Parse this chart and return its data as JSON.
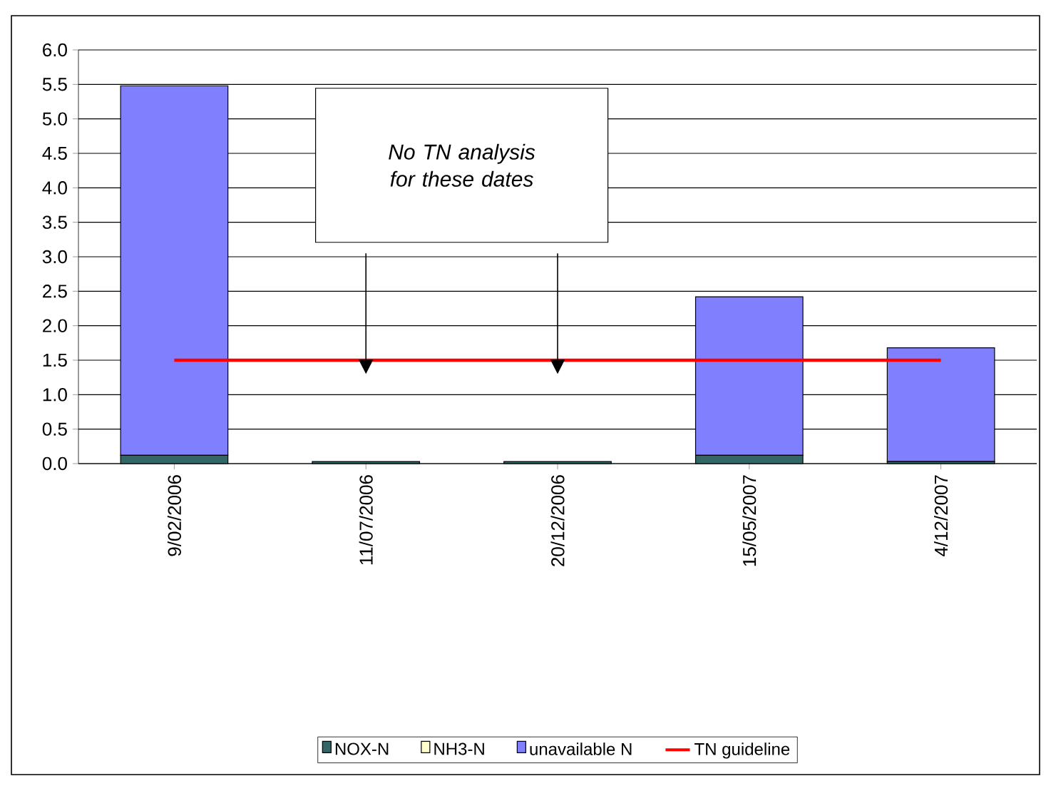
{
  "chart_data": {
    "type": "bar",
    "stacked": true,
    "categories": [
      "9/02/2006",
      "11/07/2006",
      "20/12/2006",
      "15/05/2007",
      "4/12/2007"
    ],
    "series": [
      {
        "name": "NOX-N",
        "color": "#336666",
        "values": [
          0.12,
          0.03,
          0.03,
          0.12,
          0.03
        ]
      },
      {
        "name": "NH3-N",
        "color": "#ffffcc",
        "values": [
          0,
          0,
          0,
          0,
          0
        ]
      },
      {
        "name": "unavailable N",
        "color": "#8080ff",
        "values": [
          5.36,
          null,
          null,
          2.3,
          1.65
        ]
      },
      {
        "name": "TN guideline",
        "type": "line",
        "color": "#ff0000",
        "values": [
          1.5,
          1.5,
          1.5,
          1.5,
          1.5
        ]
      }
    ],
    "ylim": [
      0,
      6
    ],
    "yticks": [
      {
        "value": 0,
        "label": "0.0"
      },
      {
        "value": 0.5,
        "label": "0.5"
      },
      {
        "value": 1,
        "label": "1.0"
      },
      {
        "value": 1.5,
        "label": "1.5"
      },
      {
        "value": 2,
        "label": "2.0"
      },
      {
        "value": 2.5,
        "label": "2.5"
      },
      {
        "value": 3,
        "label": "3.0"
      },
      {
        "value": 3.5,
        "label": "3.5"
      },
      {
        "value": 4,
        "label": "4.0"
      },
      {
        "value": 4.5,
        "label": "4.5"
      },
      {
        "value": 5,
        "label": "5.0"
      },
      {
        "value": 5.5,
        "label": "5.5"
      },
      {
        "value": 6,
        "label": "6.0"
      }
    ],
    "grid": "y",
    "legend": "bottom",
    "annotations": [
      "No TN analysis for these dates"
    ]
  }
}
